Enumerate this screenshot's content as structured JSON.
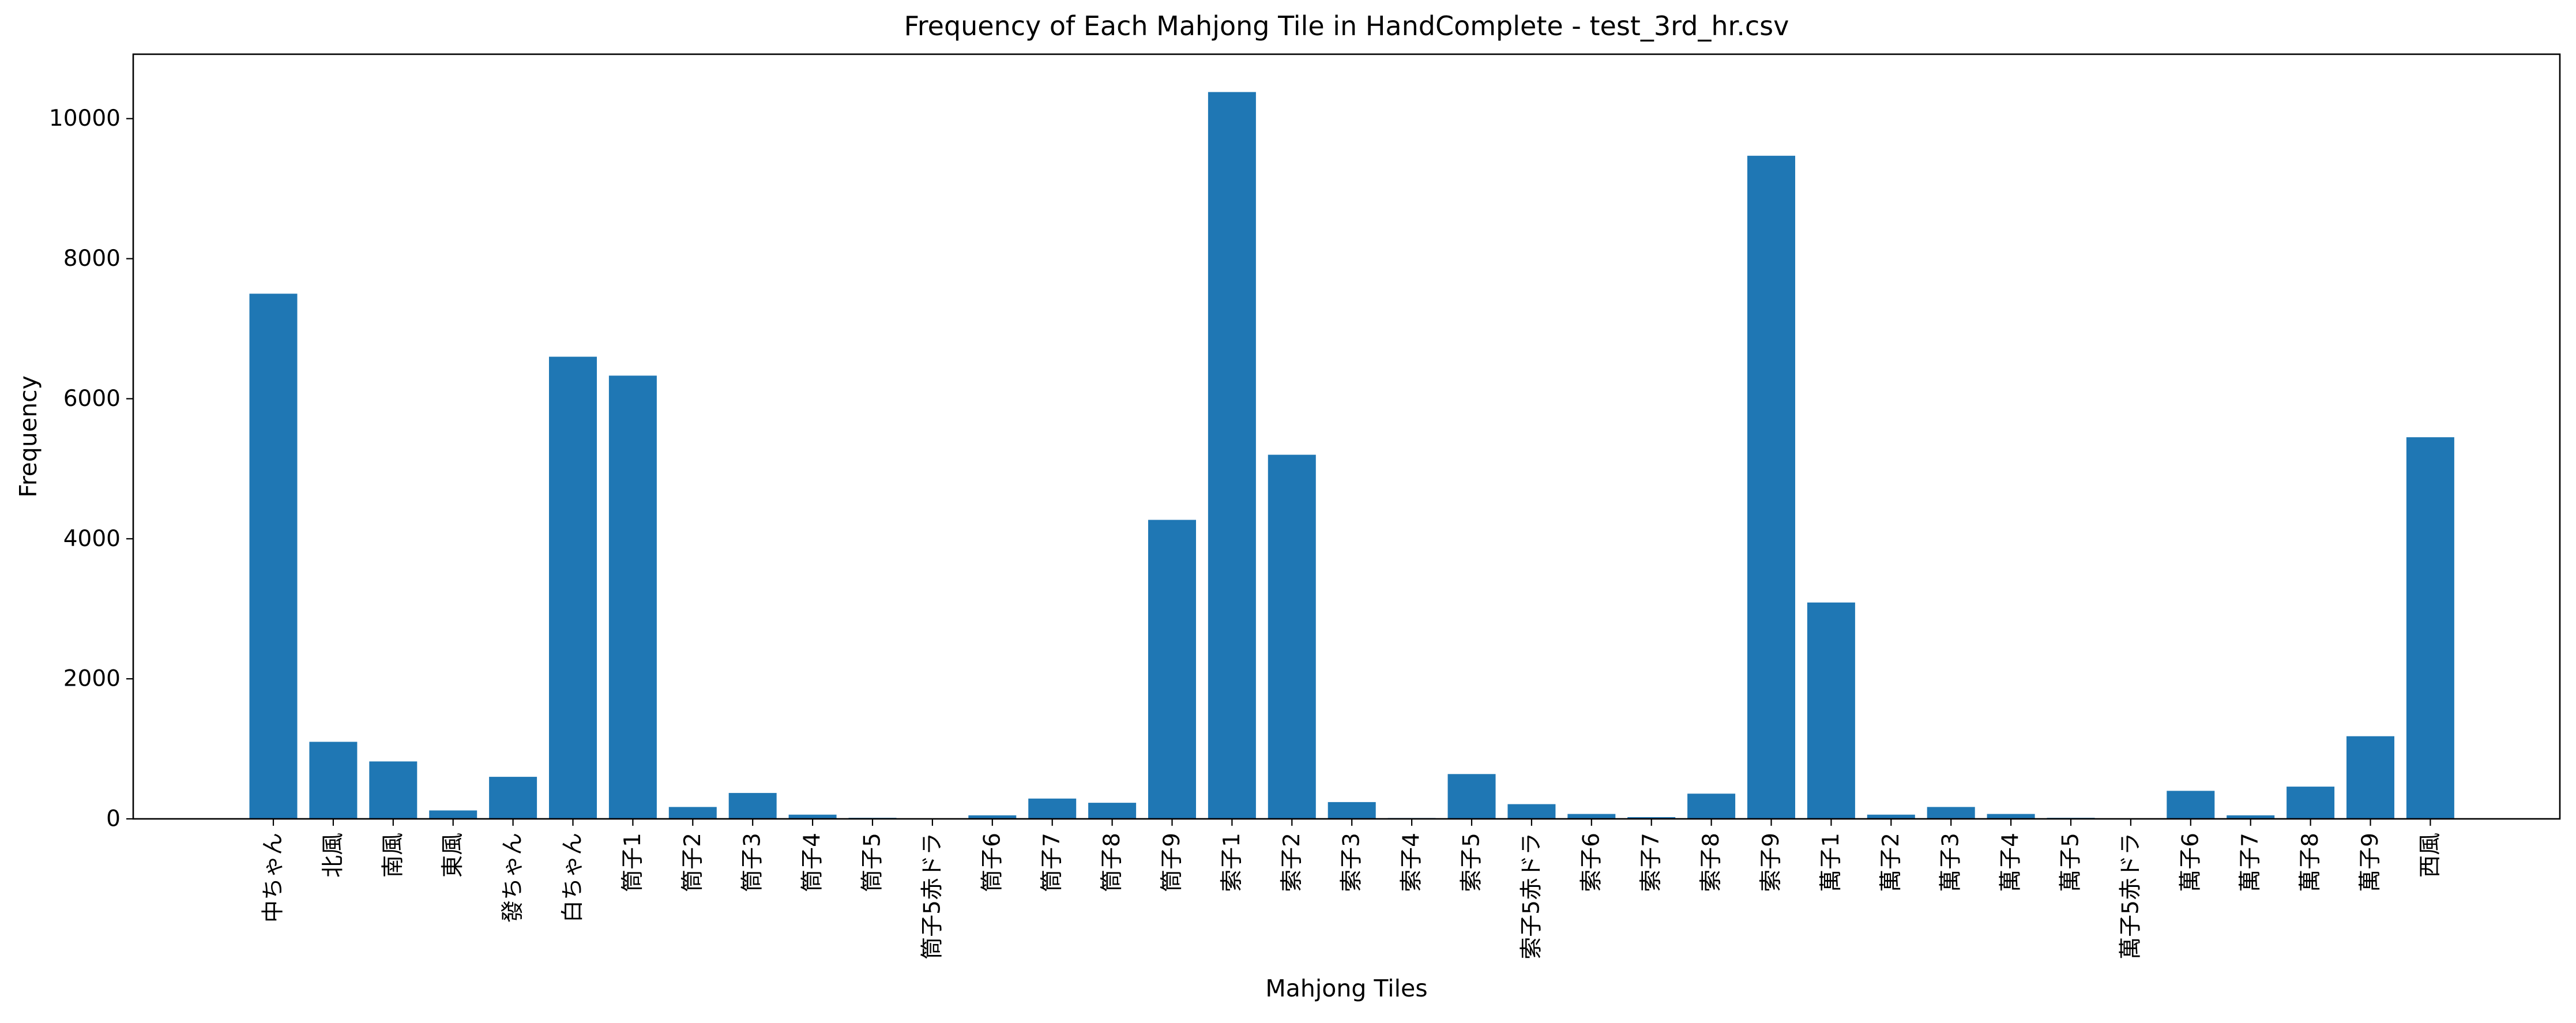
{
  "chart_data": {
    "type": "bar",
    "title": "Frequency of Each Mahjong Tile in HandComplete - test_3rd_hr.csv",
    "xlabel": "Mahjong Tiles",
    "ylabel": "Frequency",
    "ylim": [
      0,
      10920
    ],
    "yticks": [
      0,
      2000,
      4000,
      6000,
      8000,
      10000
    ],
    "ytick_labels": [
      "0",
      "2000",
      "4000",
      "6000",
      "8000",
      "10000"
    ],
    "grid": false,
    "bar_color": "#1f77b4",
    "categories": [
      "中ちゃん",
      "北風",
      "南風",
      "東風",
      "發ちゃん",
      "白ちゃん",
      "筒子1",
      "筒子2",
      "筒子3",
      "筒子4",
      "筒子5",
      "筒子5赤ドラ",
      "筒子6",
      "筒子7",
      "筒子8",
      "筒子9",
      "索子1",
      "索子2",
      "索子3",
      "索子4",
      "索子5",
      "索子5赤ドラ",
      "索子6",
      "索子7",
      "索子8",
      "索子9",
      "萬子1",
      "萬子2",
      "萬子3",
      "萬子4",
      "萬子5",
      "萬子5赤ドラ",
      "萬子6",
      "萬子7",
      "萬子8",
      "萬子9",
      "西風"
    ],
    "values": [
      7500,
      1100,
      820,
      120,
      600,
      6600,
      6330,
      170,
      370,
      60,
      15,
      5,
      50,
      290,
      230,
      4270,
      10380,
      5200,
      240,
      12,
      640,
      210,
      70,
      25,
      360,
      9470,
      3090,
      60,
      170,
      70,
      15,
      5,
      400,
      50,
      460,
      1180,
      5450
    ]
  }
}
